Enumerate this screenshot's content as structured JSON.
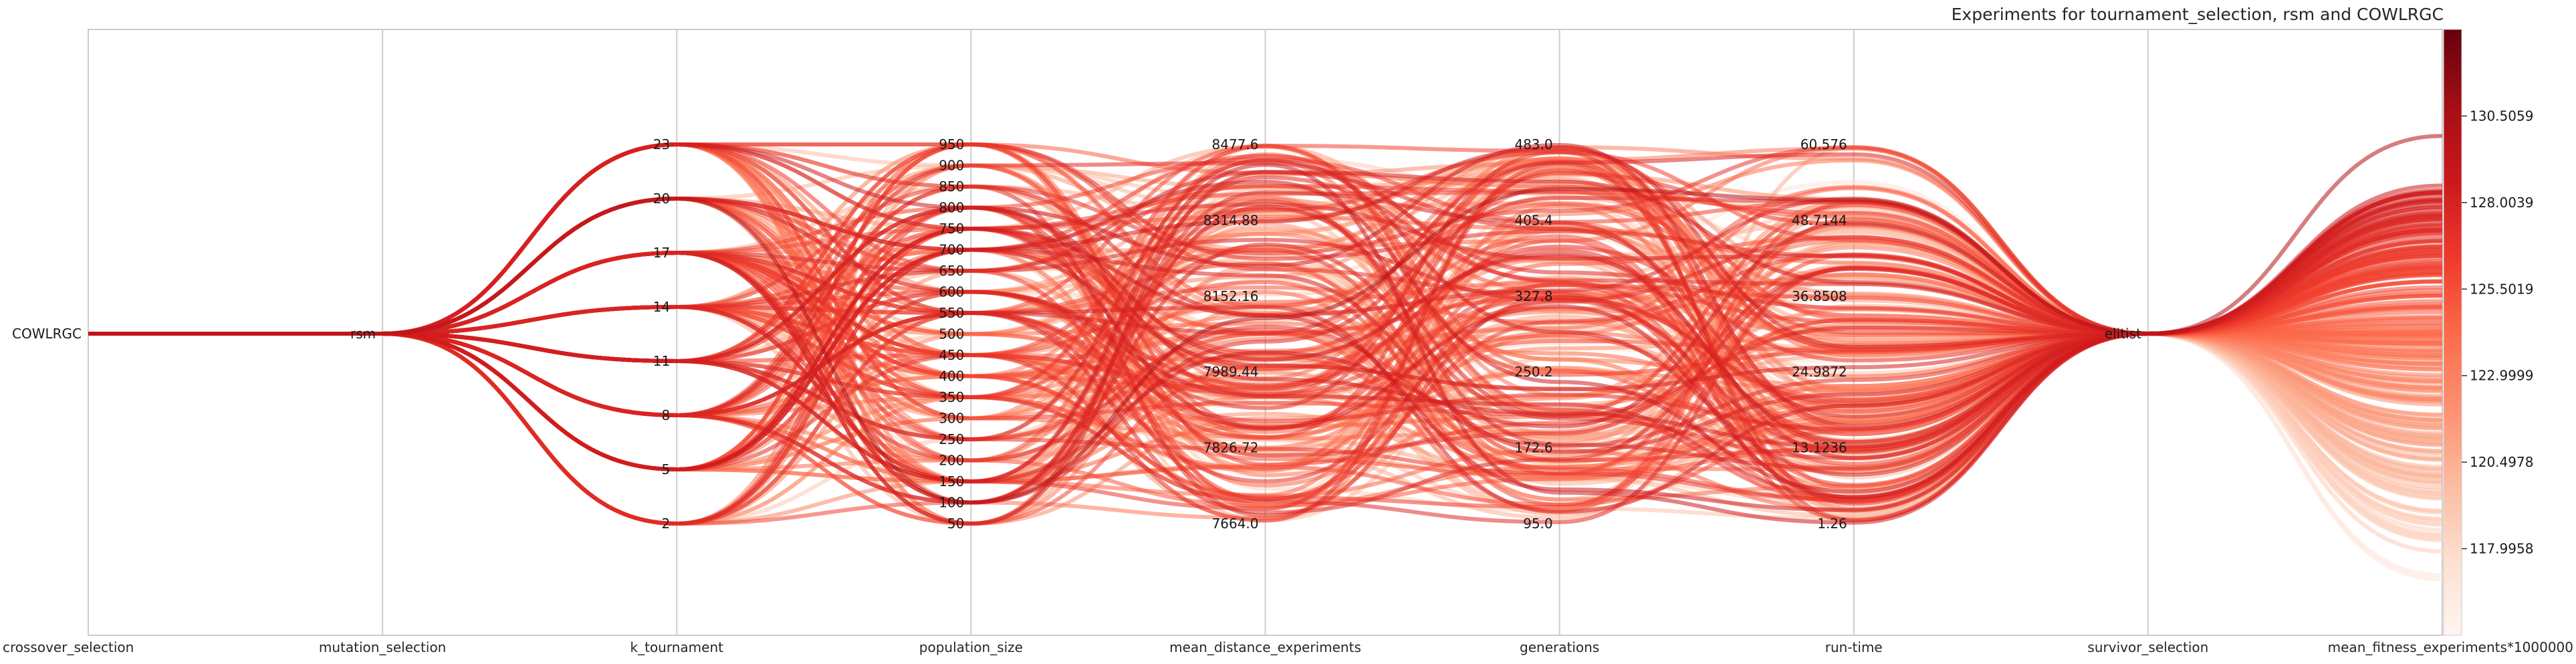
{
  "colors": {
    "cmap_low": "#fff5f0",
    "cmap_mid": "#fb6a4a",
    "cmap_high": "#67000d",
    "grid": "#cccccc",
    "frame": "#bfbfbf"
  },
  "chart_data": {
    "type": "parallel_coordinates",
    "title": "Experiments for tournament_selection, rsm and COWLRGC",
    "axes": [
      {
        "name": "crossover_selection",
        "type": "categorical",
        "ticks": [
          "COWLRGC"
        ]
      },
      {
        "name": "mutation_selection",
        "type": "categorical",
        "ticks": [
          "rsm"
        ]
      },
      {
        "name": "k_tournament",
        "type": "numeric",
        "range": [
          2,
          23
        ],
        "ticks": [
          "2",
          "5",
          "8",
          "11",
          "14",
          "17",
          "20",
          "23"
        ]
      },
      {
        "name": "population_size",
        "type": "numeric",
        "range": [
          50,
          950
        ],
        "ticks": [
          "50",
          "100",
          "150",
          "200",
          "250",
          "300",
          "350",
          "400",
          "450",
          "500",
          "550",
          "600",
          "650",
          "700",
          "750",
          "800",
          "850",
          "900",
          "950"
        ]
      },
      {
        "name": "mean_distance_experiments",
        "type": "numeric",
        "range": [
          7664.0,
          8477.6
        ],
        "ticks": [
          "7664.0",
          "7826.72",
          "7989.44",
          "8152.16",
          "8314.88",
          "8477.6"
        ]
      },
      {
        "name": "generations",
        "type": "numeric",
        "range": [
          95.0,
          483.0
        ],
        "ticks": [
          "95.0",
          "172.6",
          "250.2",
          "327.8",
          "405.4",
          "483.0"
        ]
      },
      {
        "name": "run-time",
        "type": "numeric",
        "range": [
          1.26,
          60.576
        ],
        "ticks": [
          "1.26",
          "13.1236",
          "24.9872",
          "36.8508",
          "48.7144",
          "60.576"
        ]
      },
      {
        "name": "survivor_selection",
        "type": "categorical",
        "ticks": [
          "elitist"
        ]
      },
      {
        "name": "mean_fitness_experiments*1000000",
        "type": "numeric",
        "range": [
          115.4937,
          133.008
        ]
      }
    ],
    "colorbar": {
      "ticks": [
        "117.9958",
        "120.4978",
        "122.9999",
        "125.5019",
        "128.0039",
        "130.5059"
      ],
      "range": [
        115.4937,
        133.008
      ]
    },
    "line_count": 200,
    "seed": 42
  }
}
